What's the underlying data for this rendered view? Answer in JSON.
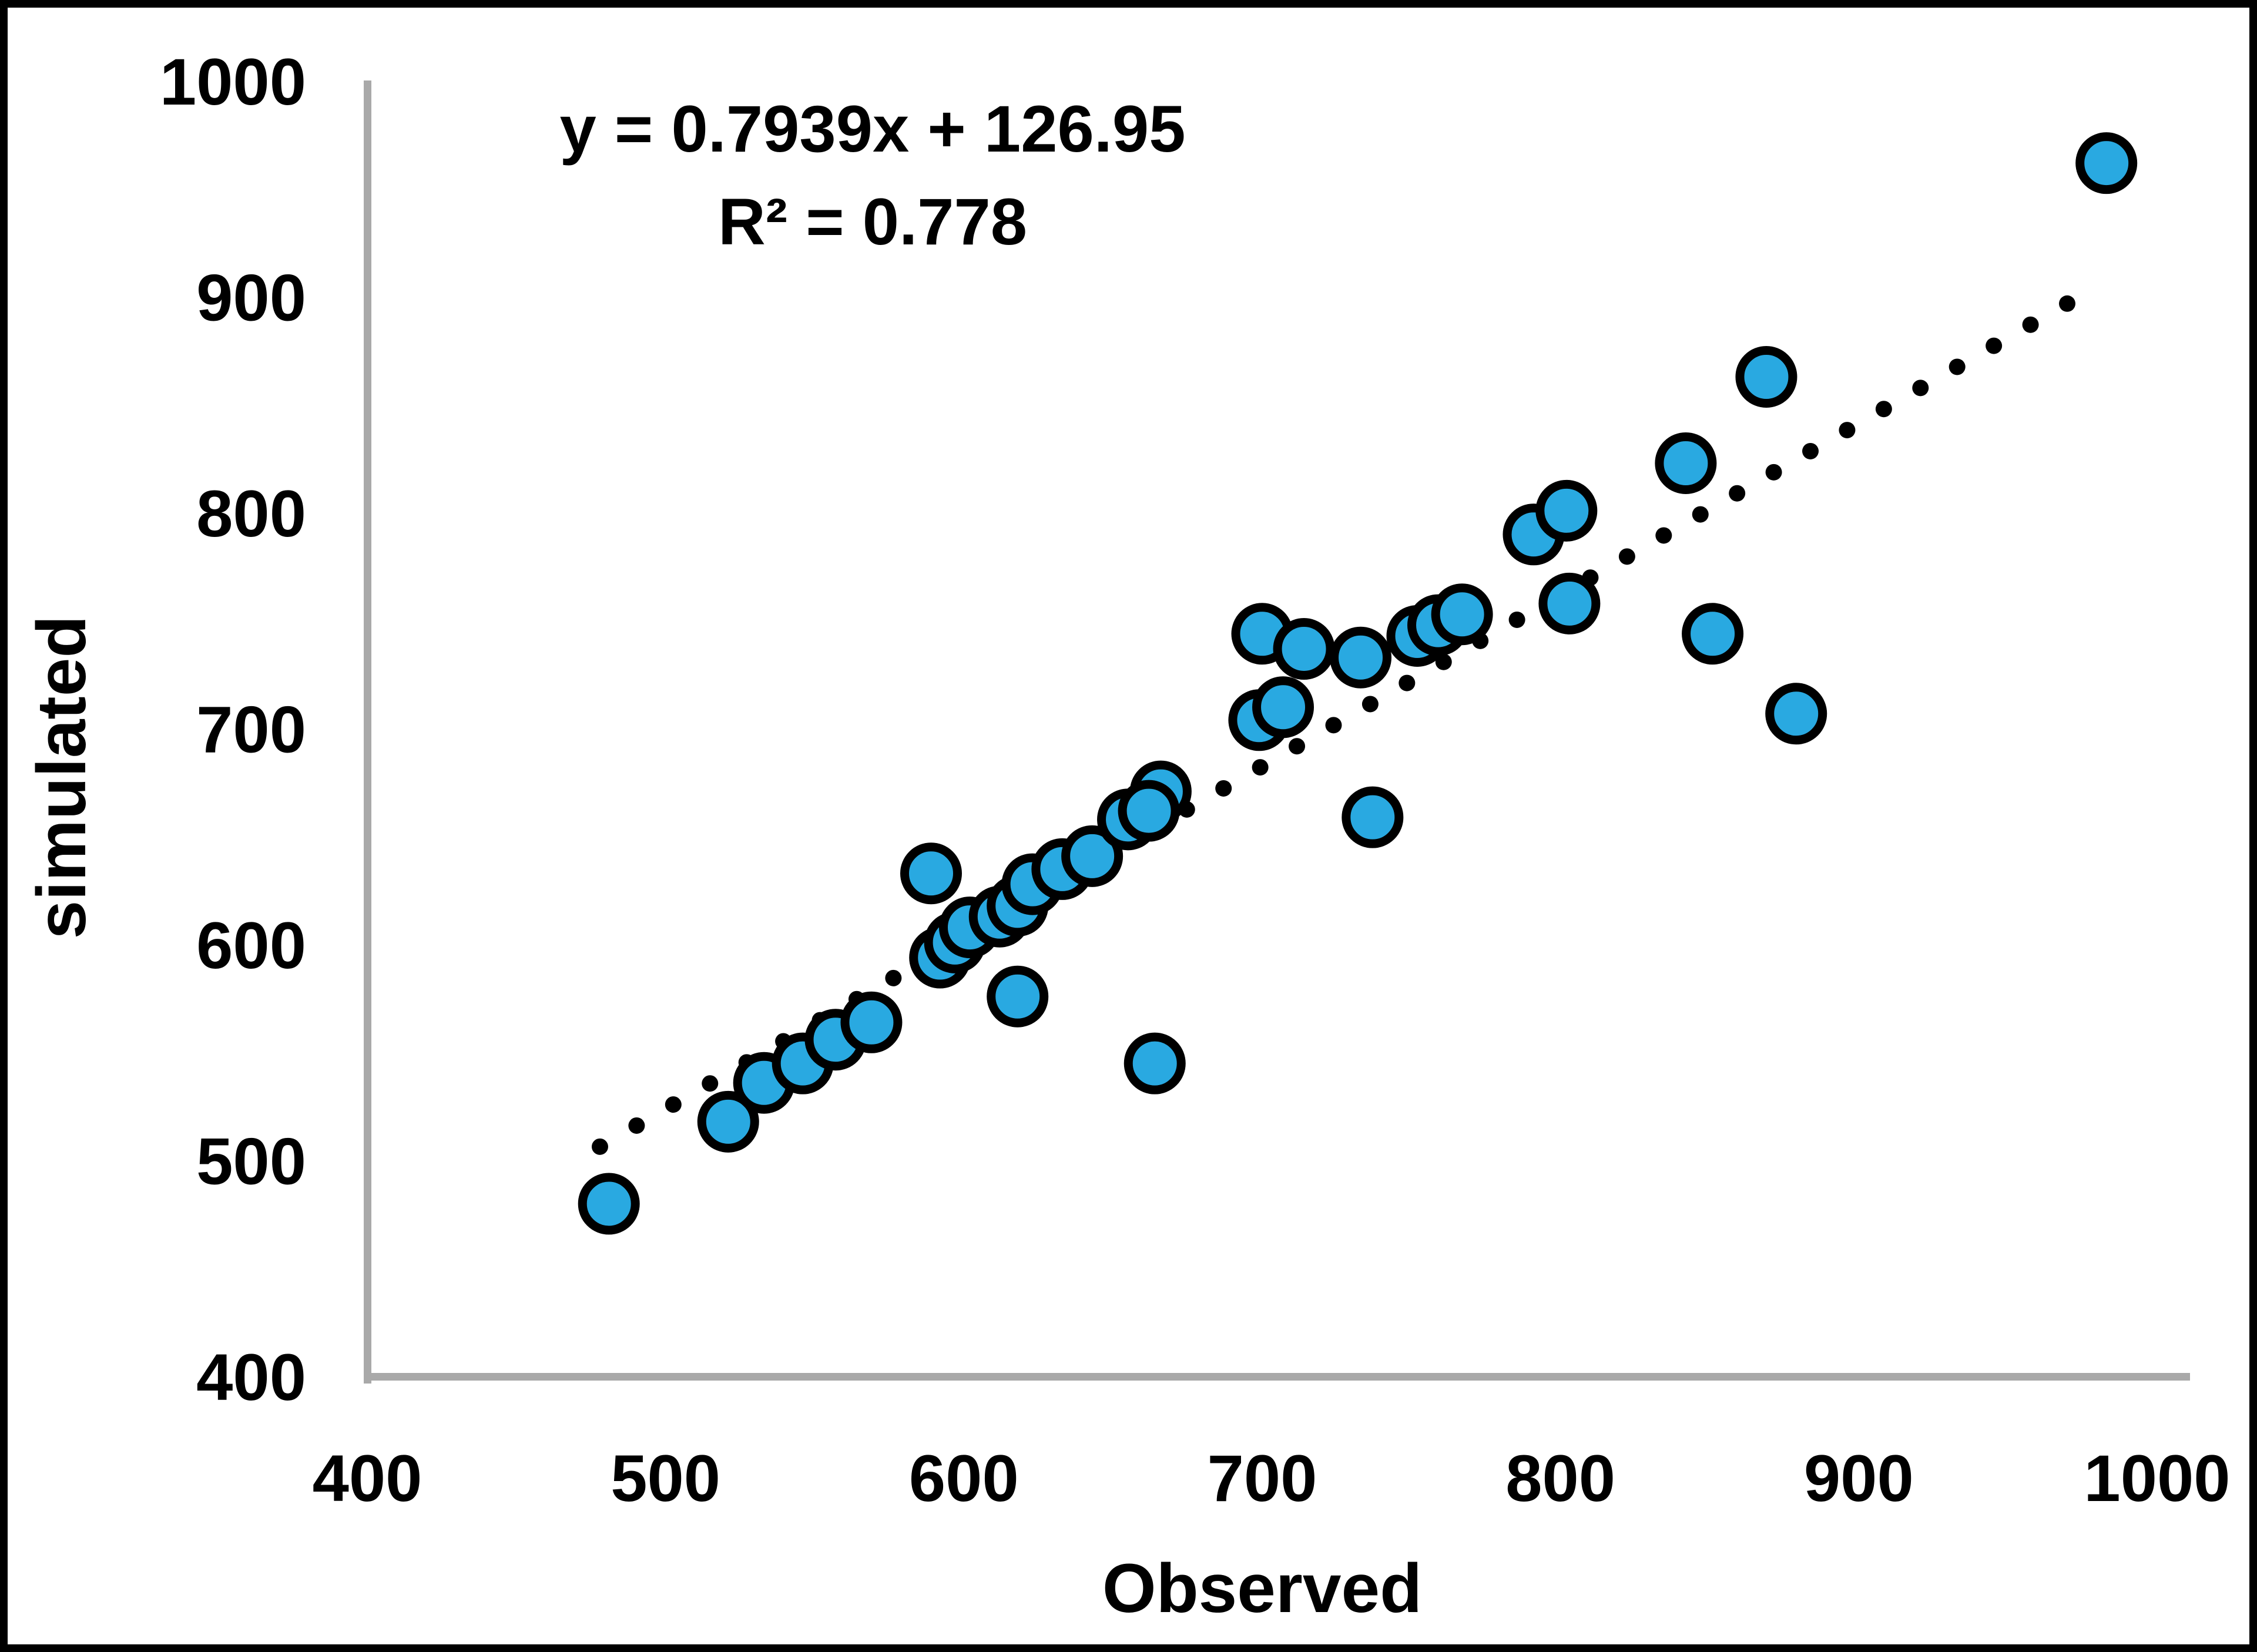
{
  "chart_data": {
    "type": "scatter",
    "title": "",
    "xlabel": "Observed",
    "ylabel": "simulated",
    "equation": {
      "line1": "y = 0.7939x + 126.95",
      "line2": "R² = 0.778"
    },
    "xlim": [
      400,
      1000
    ],
    "ylim": [
      400,
      1000
    ],
    "xticks": [
      400,
      500,
      600,
      700,
      800,
      900,
      1000
    ],
    "yticks": [
      400,
      500,
      600,
      700,
      800,
      900,
      1000
    ],
    "grid": false,
    "legend": false,
    "colors": {
      "marker_fill": "#29a9e1",
      "marker_stroke": "#000000",
      "axis_line": "#a9a9a9",
      "text": "#000000",
      "background": "#ffffff",
      "border": "#000000"
    },
    "marker": {
      "radius": 45,
      "stroke_width": 15
    },
    "trendline": {
      "style": "dotted",
      "color": "#000000",
      "slope": 0.7939,
      "intercept": 126.95,
      "x_start": 478,
      "x_end": 978,
      "dot_radius": 14,
      "dot_spacing": 72
    },
    "points": [
      [
        481,
        480
      ],
      [
        521,
        518
      ],
      [
        533,
        536
      ],
      [
        546,
        545
      ],
      [
        557,
        556
      ],
      [
        569,
        564
      ],
      [
        589,
        633
      ],
      [
        618,
        576
      ],
      [
        592,
        594
      ],
      [
        597,
        601
      ],
      [
        602,
        608
      ],
      [
        612,
        613
      ],
      [
        618,
        618
      ],
      [
        623,
        628
      ],
      [
        633,
        635
      ],
      [
        643,
        641
      ],
      [
        664,
        545
      ],
      [
        655,
        658
      ],
      [
        666,
        671
      ],
      [
        662,
        662
      ],
      [
        699,
        704
      ],
      [
        707,
        710
      ],
      [
        700,
        744
      ],
      [
        714,
        737
      ],
      [
        733,
        733
      ],
      [
        737,
        659
      ],
      [
        752,
        743
      ],
      [
        759,
        748
      ],
      [
        767,
        753
      ],
      [
        803,
        758
      ],
      [
        791,
        790
      ],
      [
        802,
        801
      ],
      [
        842,
        823
      ],
      [
        851,
        744
      ],
      [
        869,
        863
      ],
      [
        879,
        707
      ],
      [
        983,
        962
      ]
    ]
  }
}
